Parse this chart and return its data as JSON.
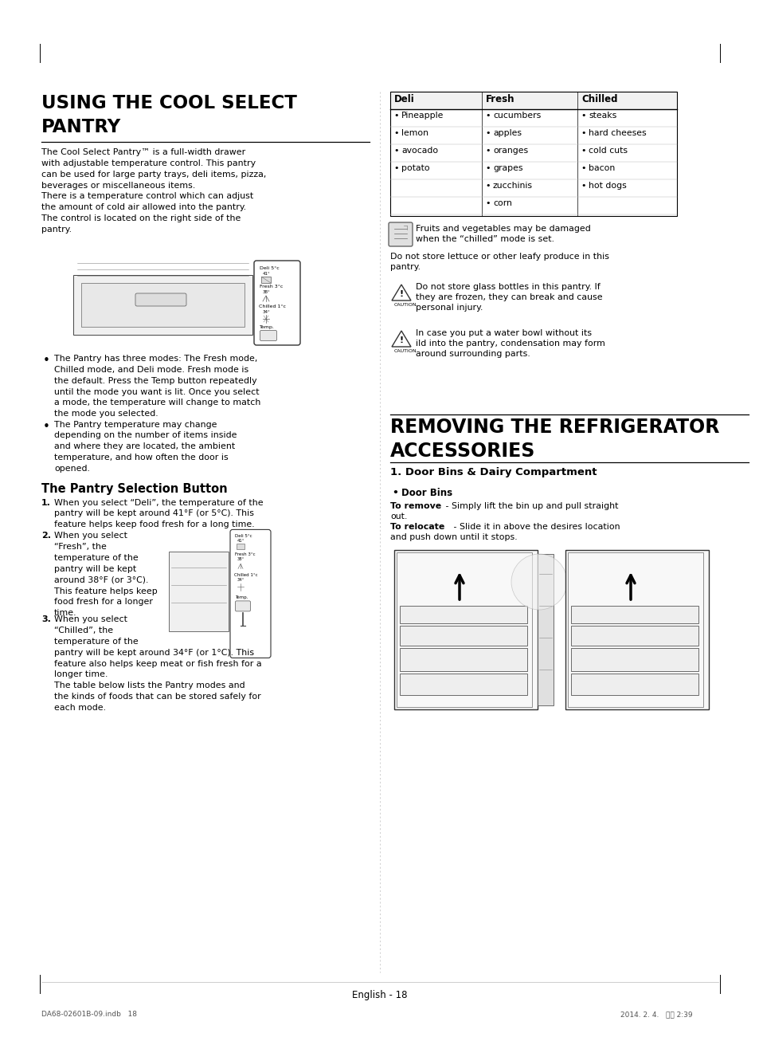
{
  "page_bg": "#ffffff",
  "title_left": "USING THE COOL SELECT\nPANTRY",
  "title_right": "REMOVING THE REFRIGERATOR\nACCESSORIES",
  "subtitle_right": "1. Door Bins & Dairy Compartment",
  "body_left_intro": "The Cool Select Pantry™ is a full-width drawer\nwith adjustable temperature control. This pantry\ncan be used for large party trays, deli items, pizza,\nbeverages or miscellaneous items.\nThere is a temperature control which can adjust\nthe amount of cold air allowed into the pantry.\nThe control is located on the right side of the\npantry.",
  "bullets_left": [
    "The Pantry has three modes: The Fresh mode,\nChilled mode, and Deli mode. Fresh mode is\nthe default. Press the Temp button repeatedly\nuntil the mode you want is lit. Once you select\na mode, the temperature will change to match\nthe mode you selected.",
    "The Pantry temperature may change\ndepending on the number of items inside\nand where they are located, the ambient\ntemperature, and how often the door is\nopened."
  ],
  "pantry_selection_title": "The Pantry Selection Button",
  "step1": "When you select “Deli”, the temperature of the\npantry will be kept around 41°F (or 5°C). This\nfeature helps keep food fresh for a long time.",
  "step2a": "When you select\n“Fresh”, the\ntemperature of the\npantry will be kept\naround 38°F (or 3°C).\nThis feature helps keep\nfood fresh for a longer\ntime.",
  "step3a": "When you select\n“Chilled”, the\ntemperature of the\npantry will be kept around 34°F (or 1°C). This\nfeature also helps keep meat or fish fresh for a\nlonger time.\nThe table below lists the Pantry modes and\nthe kinds of foods that can be stored safely for\neach mode.",
  "table_headers": [
    "Deli",
    "Fresh",
    "Chilled"
  ],
  "table_deli": [
    "Pineapple",
    "lemon",
    "avocado",
    "potato"
  ],
  "table_fresh": [
    "cucumbers",
    "apples",
    "oranges",
    "grapes",
    "zucchinis",
    "corn"
  ],
  "table_chilled": [
    "steaks",
    "hard cheeses",
    "cold cuts",
    "bacon",
    "hot dogs"
  ],
  "note_text1": "Fruits and vegetables may be damaged\nwhen the “chilled” mode is set.",
  "note_text2": "Do not store lettuce or other leafy produce in this\npantry.",
  "caution1": "Do not store glass bottles in this pantry. If\nthey are frozen, they can break and cause\npersonal injury.",
  "caution2": "In case you put a water bowl without its\nild into the pantry, condensation may form\naround surrounding parts.",
  "door_bins_bullet": "Door Bins",
  "remove_bold": "To remove",
  "remove_rest": " - Simply lift the bin up and pull straight\nout.",
  "relocate_bold": "To relocate",
  "relocate_rest": " - Slide it in above the desires location\nand push down until it stops.",
  "footer_text": "English - 18",
  "footer_bottom_left": "DA68-02601B-09.indb   18",
  "footer_bottom_right": "2014. 2. 4.   오후 2:39"
}
